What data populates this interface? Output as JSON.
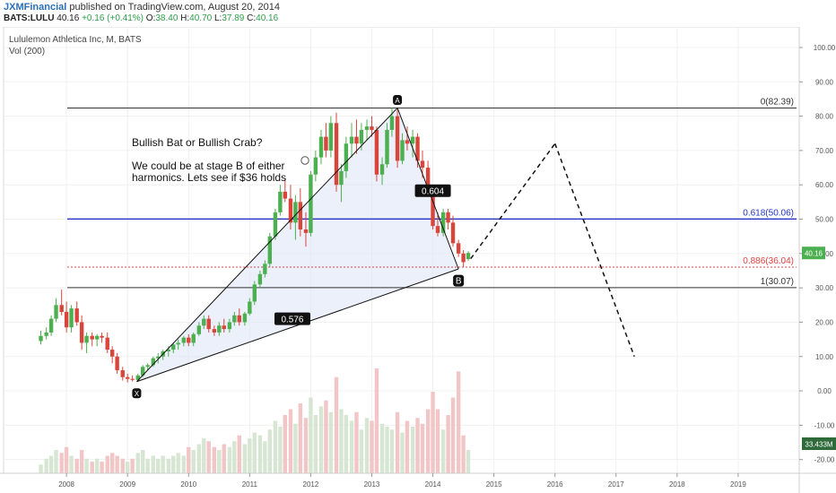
{
  "header": {
    "user": "JXMFinancial",
    "published_text": "published on TradingView.com, August 20, 2014",
    "symbol": "BATS:LULU",
    "last": "40.16",
    "change": "+0.16 (+0.41%)",
    "o_label": "O:",
    "o_value": "38.40",
    "h_label": "H:",
    "h_value": "40.70",
    "l_label": "L:",
    "l_value": "37.89",
    "c_label": "C:",
    "c_value": "40.16"
  },
  "legend": {
    "title": "Lululemon Athletica Inc, M, BATS",
    "vol": "Vol (200)"
  },
  "colors": {
    "up": "#4caf50",
    "down": "#d9443b",
    "vol_up": "#d7e6d2",
    "vol_down": "#f2c6c6",
    "fib_blue": "#2433c2",
    "fib_red": "#e04040",
    "pattern_fill": "#dde6f7"
  },
  "chart_data": {
    "type": "candlestick",
    "title": "Lululemon Athletica Inc, M, BATS",
    "y_ticks": [
      100,
      90,
      80,
      70,
      60,
      50,
      40,
      30,
      20,
      10,
      0,
      -10,
      -20
    ],
    "y_tick_labels": [
      "100.00",
      "90.00",
      "80.00",
      "70.00",
      "60.00",
      "50.00",
      "40.00",
      "30.00",
      "20.00",
      "10.00",
      "0.00",
      "-10.00",
      "-20.00"
    ],
    "x_ticks": [
      2008,
      2009,
      2010,
      2011,
      2012,
      2013,
      2014,
      2015,
      2016,
      2017,
      2018,
      2019
    ],
    "x_tick_labels": [
      "2008",
      "2009",
      "2010",
      "2011",
      "2012",
      "2013",
      "2014",
      "2015",
      "2016",
      "2017",
      "2018",
      "2019"
    ],
    "y_range": [
      -24,
      106
    ],
    "x_range": [
      2006.97,
      2020.0
    ],
    "price_label": "40.16",
    "volume_label": "33.433M",
    "annotations": {
      "text_lines": [
        "Bullish Bat or Bullish Crab?",
        "",
        "We could be at stage B of either",
        "harmonics.  Lets see if $36 holds"
      ],
      "points": [
        {
          "label": "X",
          "t": 2009.15,
          "price": 2.7
        },
        {
          "label": "A",
          "t": 2013.42,
          "price": 82.39
        },
        {
          "label": "B",
          "t": 2014.42,
          "price": 35.5
        }
      ],
      "ratios": [
        {
          "label": "0.576",
          "t": 2011.7,
          "price": 21.0
        },
        {
          "label": "0.604",
          "t": 2014.0,
          "price": 58.3
        }
      ],
      "projection": [
        {
          "t": 2014.62,
          "price": 38.5
        },
        {
          "t": 2016.0,
          "price": 72.0
        },
        {
          "t": 2017.3,
          "price": 10.0
        }
      ],
      "fib_levels": [
        {
          "ratio": "0",
          "value": "82.39",
          "price": 82.39,
          "color": "#333333",
          "dashed": false
        },
        {
          "ratio": "0.618",
          "value": "50.06",
          "price": 50.06,
          "color": "#2433c2",
          "dashed": false
        },
        {
          "ratio": "0.886",
          "value": "36.04",
          "price": 36.04,
          "color": "#e04040",
          "dashed": true
        },
        {
          "ratio": "1",
          "value": "30.07",
          "price": 30.07,
          "color": "#333333",
          "dashed": false
        }
      ]
    },
    "candles": [
      {
        "t": 2007.58,
        "o": 14.5,
        "h": 17.5,
        "l": 13.5,
        "c": 16
      },
      {
        "t": 2007.67,
        "o": 16,
        "h": 18.5,
        "l": 15,
        "c": 17
      },
      {
        "t": 2007.75,
        "o": 17,
        "h": 22,
        "l": 16,
        "c": 21
      },
      {
        "t": 2007.83,
        "o": 21,
        "h": 27,
        "l": 20,
        "c": 25
      },
      {
        "t": 2007.92,
        "o": 25,
        "h": 29.5,
        "l": 22,
        "c": 23
      },
      {
        "t": 2008.0,
        "o": 23,
        "h": 26,
        "l": 17,
        "c": 18.5
      },
      {
        "t": 2008.08,
        "o": 18.5,
        "h": 25,
        "l": 17,
        "c": 24
      },
      {
        "t": 2008.17,
        "o": 24,
        "h": 26,
        "l": 19,
        "c": 20
      },
      {
        "t": 2008.25,
        "o": 20,
        "h": 22,
        "l": 12,
        "c": 14
      },
      {
        "t": 2008.33,
        "o": 14,
        "h": 17,
        "l": 11,
        "c": 16
      },
      {
        "t": 2008.42,
        "o": 16,
        "h": 17,
        "l": 13,
        "c": 15
      },
      {
        "t": 2008.5,
        "o": 15,
        "h": 16.5,
        "l": 13,
        "c": 16
      },
      {
        "t": 2008.58,
        "o": 16,
        "h": 17,
        "l": 14,
        "c": 15.5
      },
      {
        "t": 2008.67,
        "o": 15.5,
        "h": 17,
        "l": 11,
        "c": 12
      },
      {
        "t": 2008.75,
        "o": 12,
        "h": 13,
        "l": 8,
        "c": 10
      },
      {
        "t": 2008.83,
        "o": 10,
        "h": 11,
        "l": 5,
        "c": 6
      },
      {
        "t": 2008.92,
        "o": 6,
        "h": 7,
        "l": 3,
        "c": 4
      },
      {
        "t": 2009.0,
        "o": 4,
        "h": 5,
        "l": 2.5,
        "c": 3.5
      },
      {
        "t": 2009.08,
        "o": 3.5,
        "h": 4.5,
        "l": 2.7,
        "c": 3.2
      },
      {
        "t": 2009.17,
        "o": 3.2,
        "h": 5,
        "l": 2.7,
        "c": 4.5
      },
      {
        "t": 2009.25,
        "o": 4.5,
        "h": 7.5,
        "l": 4,
        "c": 7
      },
      {
        "t": 2009.33,
        "o": 7,
        "h": 8,
        "l": 6,
        "c": 7.5
      },
      {
        "t": 2009.42,
        "o": 7.5,
        "h": 10,
        "l": 7,
        "c": 9.5
      },
      {
        "t": 2009.5,
        "o": 9.5,
        "h": 11,
        "l": 8,
        "c": 10
      },
      {
        "t": 2009.58,
        "o": 10,
        "h": 12,
        "l": 9,
        "c": 11.5
      },
      {
        "t": 2009.67,
        "o": 11.5,
        "h": 13,
        "l": 10,
        "c": 12
      },
      {
        "t": 2009.75,
        "o": 12,
        "h": 14,
        "l": 11,
        "c": 13.5
      },
      {
        "t": 2009.83,
        "o": 13.5,
        "h": 15,
        "l": 12,
        "c": 14
      },
      {
        "t": 2009.92,
        "o": 14,
        "h": 16,
        "l": 13,
        "c": 15.5
      },
      {
        "t": 2010.0,
        "o": 15.5,
        "h": 16.5,
        "l": 13,
        "c": 14
      },
      {
        "t": 2010.08,
        "o": 14,
        "h": 17,
        "l": 13,
        "c": 16.5
      },
      {
        "t": 2010.17,
        "o": 16.5,
        "h": 20,
        "l": 16,
        "c": 19
      },
      {
        "t": 2010.25,
        "o": 19,
        "h": 22,
        "l": 18,
        "c": 21
      },
      {
        "t": 2010.33,
        "o": 21,
        "h": 22,
        "l": 17,
        "c": 18
      },
      {
        "t": 2010.42,
        "o": 18,
        "h": 19,
        "l": 16,
        "c": 17
      },
      {
        "t": 2010.5,
        "o": 17,
        "h": 20,
        "l": 16,
        "c": 19
      },
      {
        "t": 2010.58,
        "o": 19,
        "h": 21,
        "l": 17,
        "c": 18
      },
      {
        "t": 2010.67,
        "o": 18,
        "h": 21,
        "l": 17,
        "c": 20
      },
      {
        "t": 2010.75,
        "o": 20,
        "h": 23,
        "l": 19,
        "c": 22
      },
      {
        "t": 2010.83,
        "o": 22,
        "h": 24,
        "l": 19,
        "c": 20
      },
      {
        "t": 2010.92,
        "o": 20,
        "h": 23,
        "l": 19,
        "c": 22.5
      },
      {
        "t": 2011.0,
        "o": 22.5,
        "h": 27,
        "l": 22,
        "c": 26
      },
      {
        "t": 2011.08,
        "o": 26,
        "h": 32,
        "l": 25,
        "c": 31
      },
      {
        "t": 2011.17,
        "o": 31,
        "h": 35,
        "l": 30,
        "c": 34
      },
      {
        "t": 2011.25,
        "o": 34,
        "h": 38,
        "l": 33,
        "c": 37
      },
      {
        "t": 2011.33,
        "o": 37,
        "h": 46,
        "l": 36,
        "c": 45
      },
      {
        "t": 2011.42,
        "o": 45,
        "h": 53,
        "l": 44,
        "c": 52
      },
      {
        "t": 2011.5,
        "o": 52,
        "h": 60,
        "l": 51,
        "c": 58
      },
      {
        "t": 2011.58,
        "o": 58,
        "h": 62,
        "l": 55,
        "c": 56
      },
      {
        "t": 2011.67,
        "o": 56,
        "h": 60,
        "l": 47,
        "c": 49
      },
      {
        "t": 2011.75,
        "o": 49,
        "h": 57,
        "l": 44,
        "c": 55
      },
      {
        "t": 2011.83,
        "o": 55,
        "h": 59,
        "l": 45,
        "c": 47
      },
      {
        "t": 2011.92,
        "o": 47,
        "h": 52,
        "l": 42,
        "c": 46
      },
      {
        "t": 2012.0,
        "o": 46,
        "h": 64,
        "l": 45,
        "c": 63
      },
      {
        "t": 2012.08,
        "o": 63,
        "h": 70,
        "l": 61,
        "c": 68
      },
      {
        "t": 2012.17,
        "o": 68,
        "h": 76,
        "l": 66,
        "c": 74
      },
      {
        "t": 2012.25,
        "o": 74,
        "h": 78,
        "l": 68,
        "c": 70
      },
      {
        "t": 2012.33,
        "o": 70,
        "h": 80,
        "l": 68,
        "c": 78
      },
      {
        "t": 2012.42,
        "o": 78,
        "h": 81,
        "l": 58,
        "c": 60
      },
      {
        "t": 2012.5,
        "o": 60,
        "h": 66,
        "l": 55,
        "c": 64
      },
      {
        "t": 2012.58,
        "o": 64,
        "h": 74,
        "l": 62,
        "c": 72
      },
      {
        "t": 2012.67,
        "o": 72,
        "h": 78,
        "l": 68,
        "c": 74
      },
      {
        "t": 2012.75,
        "o": 74,
        "h": 79,
        "l": 69,
        "c": 72
      },
      {
        "t": 2012.83,
        "o": 72,
        "h": 78,
        "l": 70,
        "c": 76
      },
      {
        "t": 2012.92,
        "o": 76,
        "h": 79,
        "l": 73,
        "c": 77
      },
      {
        "t": 2013.0,
        "o": 77,
        "h": 80,
        "l": 74,
        "c": 76
      },
      {
        "t": 2013.08,
        "o": 76,
        "h": 77,
        "l": 61,
        "c": 63
      },
      {
        "t": 2013.17,
        "o": 63,
        "h": 68,
        "l": 60,
        "c": 66
      },
      {
        "t": 2013.25,
        "o": 66,
        "h": 78,
        "l": 65,
        "c": 76
      },
      {
        "t": 2013.33,
        "o": 76,
        "h": 82.39,
        "l": 74,
        "c": 80
      },
      {
        "t": 2013.42,
        "o": 80,
        "h": 82,
        "l": 65,
        "c": 67
      },
      {
        "t": 2013.5,
        "o": 67,
        "h": 75,
        "l": 66,
        "c": 73
      },
      {
        "t": 2013.58,
        "o": 73,
        "h": 77,
        "l": 70,
        "c": 72
      },
      {
        "t": 2013.67,
        "o": 72,
        "h": 76,
        "l": 68,
        "c": 74
      },
      {
        "t": 2013.75,
        "o": 74,
        "h": 75,
        "l": 65,
        "c": 67
      },
      {
        "t": 2013.83,
        "o": 67,
        "h": 70,
        "l": 62,
        "c": 65
      },
      {
        "t": 2013.92,
        "o": 65,
        "h": 67,
        "l": 57,
        "c": 58
      },
      {
        "t": 2014.0,
        "o": 58,
        "h": 59,
        "l": 47,
        "c": 48
      },
      {
        "t": 2014.08,
        "o": 48,
        "h": 52,
        "l": 45,
        "c": 46
      },
      {
        "t": 2014.17,
        "o": 46,
        "h": 53,
        "l": 45,
        "c": 52
      },
      {
        "t": 2014.25,
        "o": 52,
        "h": 53,
        "l": 47,
        "c": 49
      },
      {
        "t": 2014.33,
        "o": 49,
        "h": 51,
        "l": 42,
        "c": 43
      },
      {
        "t": 2014.42,
        "o": 43,
        "h": 44,
        "l": 39,
        "c": 40
      },
      {
        "t": 2014.5,
        "o": 40,
        "h": 41,
        "l": 36,
        "c": 37.5
      },
      {
        "t": 2014.58,
        "o": 38.4,
        "h": 40.7,
        "l": 37.89,
        "c": 40.16
      }
    ],
    "volume": [
      {
        "t": 2007.58,
        "v": 3,
        "up": true
      },
      {
        "t": 2007.67,
        "v": 5,
        "up": true
      },
      {
        "t": 2007.75,
        "v": 6,
        "up": true
      },
      {
        "t": 2007.83,
        "v": 8,
        "up": true
      },
      {
        "t": 2007.92,
        "v": 7,
        "up": false
      },
      {
        "t": 2008.0,
        "v": 9,
        "up": false
      },
      {
        "t": 2008.08,
        "v": 6,
        "up": true
      },
      {
        "t": 2008.17,
        "v": 5,
        "up": false
      },
      {
        "t": 2008.25,
        "v": 8,
        "up": false
      },
      {
        "t": 2008.33,
        "v": 5,
        "up": true
      },
      {
        "t": 2008.42,
        "v": 4,
        "up": false
      },
      {
        "t": 2008.5,
        "v": 5,
        "up": true
      },
      {
        "t": 2008.58,
        "v": 4,
        "up": false
      },
      {
        "t": 2008.67,
        "v": 6,
        "up": false
      },
      {
        "t": 2008.75,
        "v": 7,
        "up": false
      },
      {
        "t": 2008.83,
        "v": 6,
        "up": false
      },
      {
        "t": 2008.92,
        "v": 5,
        "up": false
      },
      {
        "t": 2009.0,
        "v": 4,
        "up": true
      },
      {
        "t": 2009.08,
        "v": 5,
        "up": false
      },
      {
        "t": 2009.17,
        "v": 7,
        "up": true
      },
      {
        "t": 2009.25,
        "v": 8,
        "up": true
      },
      {
        "t": 2009.33,
        "v": 5,
        "up": true
      },
      {
        "t": 2009.42,
        "v": 6,
        "up": true
      },
      {
        "t": 2009.5,
        "v": 5,
        "up": true
      },
      {
        "t": 2009.58,
        "v": 6,
        "up": true
      },
      {
        "t": 2009.67,
        "v": 5,
        "up": true
      },
      {
        "t": 2009.75,
        "v": 6,
        "up": true
      },
      {
        "t": 2009.83,
        "v": 7,
        "up": true
      },
      {
        "t": 2009.92,
        "v": 6,
        "up": true
      },
      {
        "t": 2010.0,
        "v": 9,
        "up": false
      },
      {
        "t": 2010.08,
        "v": 8,
        "up": true
      },
      {
        "t": 2010.17,
        "v": 10,
        "up": true
      },
      {
        "t": 2010.25,
        "v": 12,
        "up": true
      },
      {
        "t": 2010.33,
        "v": 11,
        "up": false
      },
      {
        "t": 2010.42,
        "v": 9,
        "up": false
      },
      {
        "t": 2010.5,
        "v": 8,
        "up": true
      },
      {
        "t": 2010.58,
        "v": 10,
        "up": false
      },
      {
        "t": 2010.67,
        "v": 9,
        "up": true
      },
      {
        "t": 2010.75,
        "v": 11,
        "up": true
      },
      {
        "t": 2010.83,
        "v": 13,
        "up": false
      },
      {
        "t": 2010.92,
        "v": 10,
        "up": true
      },
      {
        "t": 2011.0,
        "v": 12,
        "up": true
      },
      {
        "t": 2011.08,
        "v": 14,
        "up": true
      },
      {
        "t": 2011.17,
        "v": 13,
        "up": true
      },
      {
        "t": 2011.25,
        "v": 11,
        "up": true
      },
      {
        "t": 2011.33,
        "v": 15,
        "up": true
      },
      {
        "t": 2011.42,
        "v": 18,
        "up": true
      },
      {
        "t": 2011.5,
        "v": 16,
        "up": true
      },
      {
        "t": 2011.58,
        "v": 20,
        "up": false
      },
      {
        "t": 2011.67,
        "v": 22,
        "up": false
      },
      {
        "t": 2011.75,
        "v": 17,
        "up": true
      },
      {
        "t": 2011.83,
        "v": 24,
        "up": false
      },
      {
        "t": 2011.92,
        "v": 19,
        "up": false
      },
      {
        "t": 2012.0,
        "v": 26,
        "up": true
      },
      {
        "t": 2012.08,
        "v": 20,
        "up": true
      },
      {
        "t": 2012.17,
        "v": 23,
        "up": true
      },
      {
        "t": 2012.25,
        "v": 25,
        "up": false
      },
      {
        "t": 2012.33,
        "v": 21,
        "up": true
      },
      {
        "t": 2012.42,
        "v": 33,
        "up": false
      },
      {
        "t": 2012.5,
        "v": 22,
        "up": true
      },
      {
        "t": 2012.58,
        "v": 20,
        "up": true
      },
      {
        "t": 2012.67,
        "v": 18,
        "up": true
      },
      {
        "t": 2012.75,
        "v": 21,
        "up": false
      },
      {
        "t": 2012.83,
        "v": 15,
        "up": true
      },
      {
        "t": 2012.92,
        "v": 19,
        "up": true
      },
      {
        "t": 2013.0,
        "v": 18,
        "up": false
      },
      {
        "t": 2013.08,
        "v": 36,
        "up": false
      },
      {
        "t": 2013.17,
        "v": 17,
        "up": true
      },
      {
        "t": 2013.25,
        "v": 16,
        "up": true
      },
      {
        "t": 2013.33,
        "v": 15,
        "up": true
      },
      {
        "t": 2013.42,
        "v": 21,
        "up": false
      },
      {
        "t": 2013.5,
        "v": 14,
        "up": true
      },
      {
        "t": 2013.58,
        "v": 18,
        "up": false
      },
      {
        "t": 2013.67,
        "v": 16,
        "up": true
      },
      {
        "t": 2013.75,
        "v": 19,
        "up": false
      },
      {
        "t": 2013.83,
        "v": 17,
        "up": false
      },
      {
        "t": 2013.92,
        "v": 22,
        "up": false
      },
      {
        "t": 2014.0,
        "v": 28,
        "up": false
      },
      {
        "t": 2014.08,
        "v": 22,
        "up": false
      },
      {
        "t": 2014.17,
        "v": 15,
        "up": true
      },
      {
        "t": 2014.25,
        "v": 20,
        "up": false
      },
      {
        "t": 2014.33,
        "v": 26,
        "up": false
      },
      {
        "t": 2014.42,
        "v": 35,
        "up": false
      },
      {
        "t": 2014.5,
        "v": 13,
        "up": false
      },
      {
        "t": 2014.58,
        "v": 8,
        "up": true
      }
    ]
  }
}
